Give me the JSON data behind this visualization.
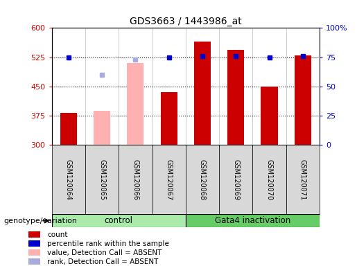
{
  "title": "GDS3663 / 1443986_at",
  "samples": [
    "GSM120064",
    "GSM120065",
    "GSM120066",
    "GSM120067",
    "GSM120068",
    "GSM120069",
    "GSM120070",
    "GSM120071"
  ],
  "count_values": [
    383,
    null,
    null,
    435,
    565,
    543,
    450,
    530
  ],
  "count_absent_values": [
    null,
    388,
    510,
    null,
    null,
    null,
    null,
    null
  ],
  "rank_values": [
    524,
    null,
    null,
    524,
    527,
    528,
    524,
    528
  ],
  "rank_absent_values": [
    null,
    480,
    519,
    null,
    null,
    null,
    null,
    null
  ],
  "ylim_left": [
    300,
    600
  ],
  "ylim_right": [
    0,
    100
  ],
  "yticks_left": [
    300,
    375,
    450,
    525,
    600
  ],
  "yticks_right": [
    0,
    25,
    50,
    75,
    100
  ],
  "bar_width": 0.5,
  "count_color": "#cc0000",
  "count_absent_color": "#ffb0b0",
  "rank_color": "#0000cc",
  "rank_absent_color": "#aaaadd",
  "grid_dotted_values": [
    375,
    450,
    525
  ],
  "sample_box_color": "#d8d8d8",
  "control_color": "#aaeaaa",
  "gata4_color": "#66cc66",
  "control_label": "control",
  "gata4_label": "Gata4 inactivation",
  "genotype_label": "genotype/variation",
  "legend_items": [
    "count",
    "percentile rank within the sample",
    "value, Detection Call = ABSENT",
    "rank, Detection Call = ABSENT"
  ],
  "legend_colors": [
    "#cc0000",
    "#0000cc",
    "#ffb0b0",
    "#aaaadd"
  ]
}
